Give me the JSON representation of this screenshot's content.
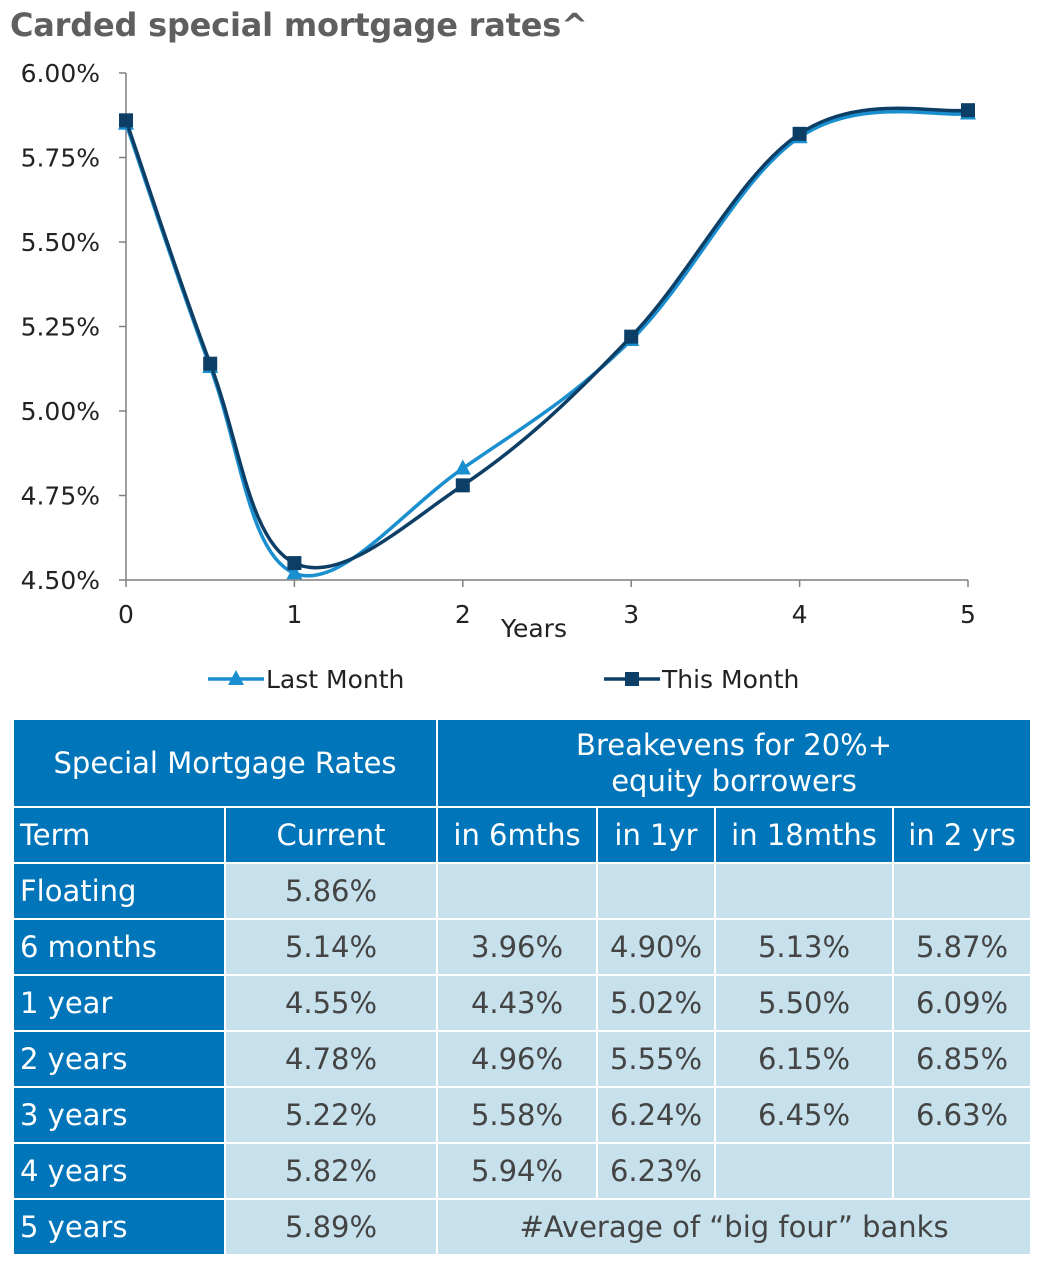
{
  "chart_data": {
    "type": "line",
    "title": "Carded special mortgage rates^",
    "xlabel": "Years",
    "ylabel": "",
    "xlim": [
      0,
      5
    ],
    "ylim": [
      4.5,
      6.0
    ],
    "x_ticks": [
      "0",
      "1",
      "2",
      "3",
      "4",
      "5"
    ],
    "y_ticks": [
      "4.50%",
      "4.75%",
      "5.00%",
      "5.25%",
      "5.50%",
      "5.75%",
      "6.00%"
    ],
    "grid": false,
    "legend_position": "bottom",
    "series": [
      {
        "name": "Last Month",
        "marker": "triangle",
        "color": "#1a8fd0",
        "points": [
          [
            0,
            5.85
          ],
          [
            0.5,
            5.13
          ],
          [
            1,
            4.52
          ],
          [
            2,
            4.83
          ],
          [
            3,
            5.21
          ],
          [
            4,
            5.81
          ],
          [
            5,
            5.88
          ]
        ]
      },
      {
        "name": "This Month",
        "marker": "square",
        "color": "#0d3f66",
        "points": [
          [
            0,
            5.86
          ],
          [
            0.5,
            5.14
          ],
          [
            1,
            4.55
          ],
          [
            2,
            4.78
          ],
          [
            3,
            5.22
          ],
          [
            4,
            5.82
          ],
          [
            5,
            5.89
          ]
        ]
      }
    ]
  },
  "table": {
    "header_left": "Special Mortgage Rates",
    "header_right": "Breakevens for 20%+\nequity borrowers",
    "columns": [
      "Term",
      "Current",
      "in 6mths",
      "in 1yr",
      "in 18mths",
      "in 2 yrs"
    ],
    "rows": [
      {
        "term": "Floating",
        "current": "5.86%",
        "b6m": "",
        "b1y": "",
        "b18m": "",
        "b2y": ""
      },
      {
        "term": "6 months",
        "current": "5.14%",
        "b6m": "3.96%",
        "b1y": "4.90%",
        "b18m": "5.13%",
        "b2y": "5.87%"
      },
      {
        "term": "1 year",
        "current": "4.55%",
        "b6m": "4.43%",
        "b1y": "5.02%",
        "b18m": "5.50%",
        "b2y": "6.09%"
      },
      {
        "term": "2 years",
        "current": "4.78%",
        "b6m": "4.96%",
        "b1y": "5.55%",
        "b18m": "6.15%",
        "b2y": "6.85%"
      },
      {
        "term": "3 years",
        "current": "5.22%",
        "b6m": "5.58%",
        "b1y": "6.24%",
        "b18m": "6.45%",
        "b2y": "6.63%"
      },
      {
        "term": "4 years",
        "current": "5.82%",
        "b6m": "5.94%",
        "b1y": "6.23%",
        "b18m": "",
        "b2y": ""
      },
      {
        "term": "5 years",
        "current": "5.89%"
      }
    ],
    "footnote": "#Average of “big four” banks"
  }
}
